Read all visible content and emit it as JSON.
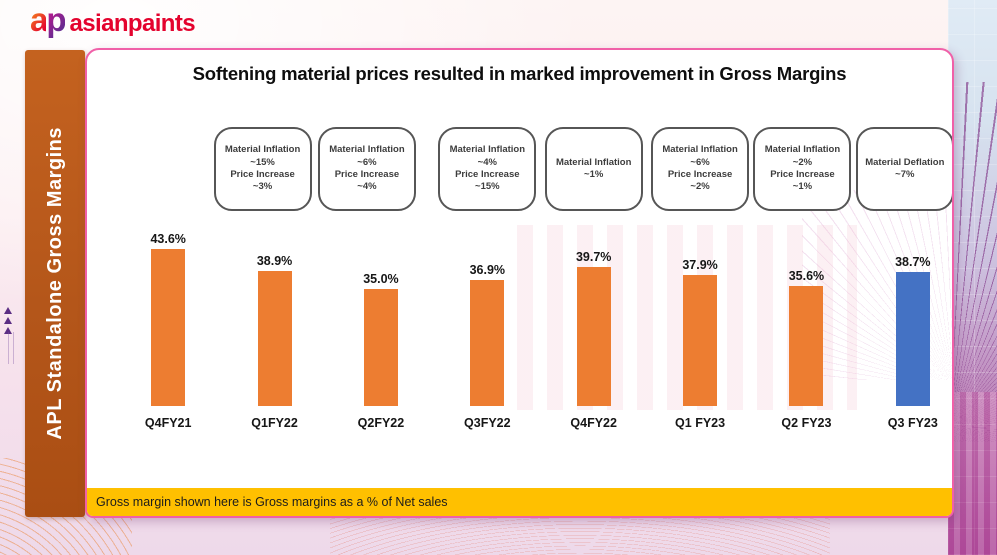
{
  "logo": {
    "mark_a": "a",
    "mark_p": "p",
    "wordmark": "asianpaints"
  },
  "sidebar": {
    "label": "APL Standalone Gross Margins"
  },
  "slide": {
    "title": "Softening material prices resulted in marked improvement in Gross Margins"
  },
  "footnote": {
    "text": "Gross margin shown here is Gross margins as a % of Net sales"
  },
  "colors": {
    "bar_orange": "#ED7D31",
    "bar_highlight_blue": "#4472C4",
    "sidebar_orange": "#B8591C",
    "footnote_yellow": "#FFC000",
    "card_border_pink": "#F060A8",
    "logo_red": "#E4032E"
  },
  "chart_data": {
    "type": "bar",
    "title": "APL Standalone Gross Margins",
    "subtitle": "Softening material prices resulted in marked improvement in Gross Margins",
    "unit": "%",
    "categories": [
      "Q4FY21",
      "Q1FY22",
      "Q2FY22",
      "Q3FY22",
      "Q4FY22",
      "Q1 FY23",
      "Q2 FY23",
      "Q3 FY23"
    ],
    "values": [
      43.6,
      38.9,
      35.0,
      36.9,
      39.7,
      37.9,
      35.6,
      38.7
    ],
    "value_labels": [
      "43.6%",
      "38.9%",
      "35.0%",
      "36.9%",
      "39.7%",
      "37.9%",
      "35.6%",
      "38.7%"
    ],
    "bar_colors": [
      "#ED7D31",
      "#ED7D31",
      "#ED7D31",
      "#ED7D31",
      "#ED7D31",
      "#ED7D31",
      "#ED7D31",
      "#4472C4"
    ],
    "ylim": [
      9.8,
      45
    ],
    "grid": false,
    "legend": false,
    "annotations": [
      {
        "over": "Q1FY22",
        "lines": [
          "Material Inflation",
          "~15%",
          "Price Increase",
          "~3%"
        ]
      },
      {
        "over": "Q2FY22",
        "lines": [
          "Material Inflation",
          "~6%",
          "Price Increase",
          "~4%"
        ]
      },
      {
        "over": "Q3FY22",
        "lines": [
          "Material Inflation",
          "~4%",
          "Price Increase",
          "~15%"
        ]
      },
      {
        "over": "Q4FY22",
        "lines": [
          "Material Inflation",
          "~1%"
        ]
      },
      {
        "over": "Q1 FY23",
        "lines": [
          "Material Inflation",
          "~6%",
          "Price Increase",
          "~2%"
        ]
      },
      {
        "over": "Q2 FY23",
        "lines": [
          "Material Inflation",
          "~2%",
          "Price Increase",
          "~1%"
        ]
      },
      {
        "over": "Q3 FY23",
        "lines": [
          "Material Deflation",
          "~7%"
        ]
      }
    ]
  }
}
